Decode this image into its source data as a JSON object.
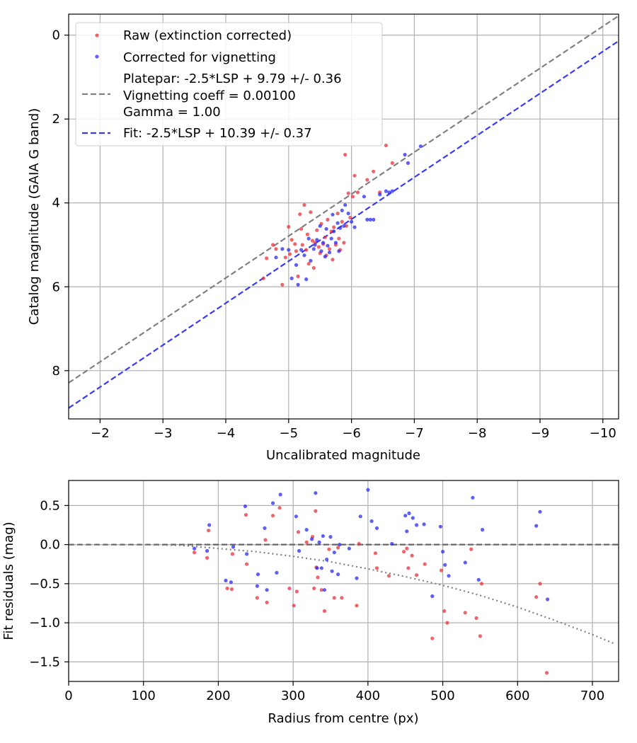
{
  "chart_data": [
    {
      "type": "scatter",
      "title": "",
      "xlabel": "Uncalibrated magnitude",
      "ylabel": "Catalog magnitude (GAIA G band)",
      "xlim": [
        -1.5,
        -10.25
      ],
      "ylim": [
        9.15,
        -0.5
      ],
      "x_inverted": true,
      "y_inverted": true,
      "grid": true,
      "legend_position": "upper-left",
      "xticks": [
        -2,
        -3,
        -4,
        -5,
        -6,
        -7,
        -8,
        -9,
        -10
      ],
      "xtick_labels": [
        "−2",
        "−3",
        "−4",
        "−5",
        "−6",
        "−7",
        "−8",
        "−9",
        "−10"
      ],
      "yticks": [
        0,
        2,
        4,
        6,
        8
      ],
      "ytick_labels": [
        "0",
        "2",
        "4",
        "6",
        "8"
      ],
      "legend": [
        {
          "label": "Raw (extinction corrected)",
          "kind": "marker",
          "color": "#e8333a"
        },
        {
          "label": "Corrected for vignetting",
          "kind": "marker",
          "color": "#2a2af0"
        },
        {
          "label": "Platepar: -2.5*LSP + 9.79 +/- 0.36",
          "kind": "dashed",
          "color": "#808080",
          "extra_lines": [
            "Vignetting coeff = 0.00100",
            "Gamma = 1.00"
          ]
        },
        {
          "label": "Fit: -2.5*LSP + 10.39 +/- 0.37",
          "kind": "dashed",
          "color": "#3a3af0"
        }
      ],
      "lines": [
        {
          "name": "Platepar",
          "color": "#808080",
          "x": [
            -1.5,
            -10.25
          ],
          "y": [
            8.29,
            -0.46
          ]
        },
        {
          "name": "Fit",
          "color": "#3a3af0",
          "x": [
            -1.5,
            -10.25
          ],
          "y": [
            8.89,
            0.14
          ]
        }
      ],
      "series": [
        {
          "name": "Raw (extinction corrected)",
          "color": "#e8333a",
          "points": [
            [
              -4.6,
              5.8
            ],
            [
              -4.65,
              5.32
            ],
            [
              -4.75,
              5.0
            ],
            [
              -4.8,
              5.1
            ],
            [
              -4.9,
              5.95
            ],
            [
              -4.95,
              5.3
            ],
            [
              -5.0,
              4.57
            ],
            [
              -5.02,
              5.22
            ],
            [
              -5.05,
              4.88
            ],
            [
              -5.1,
              4.98
            ],
            [
              -5.12,
              5.15
            ],
            [
              -5.15,
              5.75
            ],
            [
              -5.18,
              4.27
            ],
            [
              -5.2,
              4.62
            ],
            [
              -5.22,
              5.0
            ],
            [
              -5.25,
              4.05
            ],
            [
              -5.28,
              5.12
            ],
            [
              -5.3,
              4.75
            ],
            [
              -5.32,
              5.45
            ],
            [
              -5.35,
              4.22
            ],
            [
              -5.38,
              4.9
            ],
            [
              -5.4,
              5.55
            ],
            [
              -5.42,
              4.95
            ],
            [
              -5.45,
              4.65
            ],
            [
              -5.48,
              5.05
            ],
            [
              -5.5,
              5.2
            ],
            [
              -5.52,
              4.5
            ],
            [
              -5.55,
              4.98
            ],
            [
              -5.58,
              4.82
            ],
            [
              -5.6,
              5.25
            ],
            [
              -5.62,
              4.4
            ],
            [
              -5.65,
              5.1
            ],
            [
              -5.68,
              4.68
            ],
            [
              -5.7,
              5.35
            ],
            [
              -5.72,
              4.58
            ],
            [
              -5.75,
              5.0
            ],
            [
              -5.78,
              4.25
            ],
            [
              -5.8,
              4.85
            ],
            [
              -5.82,
              5.12
            ],
            [
              -5.85,
              4.45
            ],
            [
              -5.88,
              4.95
            ],
            [
              -5.9,
              2.85
            ],
            [
              -5.92,
              4.55
            ],
            [
              -5.95,
              3.77
            ],
            [
              -5.98,
              4.35
            ],
            [
              -6.02,
              3.85
            ],
            [
              -6.05,
              3.35
            ],
            [
              -6.1,
              3.75
            ],
            [
              -6.25,
              3.45
            ],
            [
              -6.35,
              3.25
            ],
            [
              -6.45,
              3.75
            ],
            [
              -6.55,
              2.63
            ],
            [
              -6.65,
              3.05
            ]
          ]
        },
        {
          "name": "Corrected for vignetting",
          "color": "#2a2af0",
          "points": [
            [
              -4.8,
              5.3
            ],
            [
              -4.9,
              5.1
            ],
            [
              -5.0,
              5.12
            ],
            [
              -5.05,
              5.8
            ],
            [
              -5.12,
              5.48
            ],
            [
              -5.15,
              5.95
            ],
            [
              -5.2,
              5.12
            ],
            [
              -5.25,
              5.25
            ],
            [
              -5.28,
              5.82
            ],
            [
              -5.32,
              4.85
            ],
            [
              -5.35,
              5.38
            ],
            [
              -5.4,
              5.1
            ],
            [
              -5.42,
              5.0
            ],
            [
              -5.45,
              4.88
            ],
            [
              -5.5,
              4.55
            ],
            [
              -5.52,
              5.15
            ],
            [
              -5.55,
              4.95
            ],
            [
              -5.58,
              5.28
            ],
            [
              -5.6,
              4.62
            ],
            [
              -5.62,
              5.02
            ],
            [
              -5.65,
              5.18
            ],
            [
              -5.68,
              4.85
            ],
            [
              -5.7,
              4.28
            ],
            [
              -5.72,
              4.68
            ],
            [
              -5.75,
              4.95
            ],
            [
              -5.78,
              4.48
            ],
            [
              -5.8,
              5.15
            ],
            [
              -5.82,
              4.6
            ],
            [
              -5.85,
              4.18
            ],
            [
              -5.88,
              4.55
            ],
            [
              -5.9,
              4.05
            ],
            [
              -5.95,
              4.25
            ],
            [
              -6.0,
              4.45
            ],
            [
              -6.05,
              4.58
            ],
            [
              -6.2,
              3.85
            ],
            [
              -6.25,
              4.4
            ],
            [
              -6.3,
              4.4
            ],
            [
              -6.35,
              4.4
            ],
            [
              -6.45,
              3.8
            ],
            [
              -6.55,
              3.72
            ],
            [
              -6.6,
              3.75
            ],
            [
              -6.65,
              3.72
            ],
            [
              -6.85,
              2.85
            ],
            [
              -6.9,
              3.05
            ],
            [
              -7.1,
              2.65
            ]
          ]
        }
      ]
    },
    {
      "type": "scatter",
      "title": "",
      "xlabel": "Radius from centre (px)",
      "ylabel": "Fit residuals (mag)",
      "xlim": [
        0,
        735
      ],
      "ylim": [
        -1.75,
        0.82
      ],
      "grid": true,
      "xticks": [
        0,
        100,
        200,
        300,
        400,
        500,
        600,
        700
      ],
      "xtick_labels": [
        "0",
        "100",
        "200",
        "300",
        "400",
        "500",
        "600",
        "700"
      ],
      "yticks": [
        0.5,
        0.0,
        -0.5,
        -1.0,
        -1.5
      ],
      "ytick_labels": [
        "0.5",
        "0.0",
        "−0.5",
        "−1.0",
        "−1.5"
      ],
      "lines": [
        {
          "name": "zero line",
          "color": "#666666",
          "style": "dashed",
          "x": [
            0,
            735
          ],
          "y": [
            0,
            0
          ]
        },
        {
          "name": "vignetting curve",
          "color": "#808080",
          "style": "dotted",
          "x": [
            0,
            50,
            100,
            150,
            200,
            250,
            300,
            350,
            400,
            450,
            500,
            550,
            600,
            650,
            700,
            730
          ],
          "y": [
            0,
            0,
            0,
            -0.01,
            -0.05,
            -0.09,
            -0.15,
            -0.22,
            -0.31,
            -0.41,
            -0.52,
            -0.65,
            -0.8,
            -0.97,
            -1.15,
            -1.27
          ]
        }
      ],
      "series": [
        {
          "name": "Raw (extinction corrected)",
          "color": "#e8333a",
          "points": [
            [
              168,
              -0.1
            ],
            [
              185,
              -0.17
            ],
            [
              187,
              0.18
            ],
            [
              212,
              -0.56
            ],
            [
              218,
              -0.57
            ],
            [
              219,
              -0.12
            ],
            [
              237,
              0.38
            ],
            [
              238,
              -0.25
            ],
            [
              252,
              -0.68
            ],
            [
              263,
              0.06
            ],
            [
              265,
              -0.74
            ],
            [
              273,
              0.37
            ],
            [
              282,
              0.47
            ],
            [
              295,
              -0.56
            ],
            [
              301,
              -0.78
            ],
            [
              305,
              -0.6
            ],
            [
              307,
              0.16
            ],
            [
              318,
              0.03
            ],
            [
              326,
              0.1
            ],
            [
              328,
              -0.56
            ],
            [
              330,
              0.43
            ],
            [
              331,
              -0.29
            ],
            [
              333,
              -0.42
            ],
            [
              338,
              -0.58
            ],
            [
              342,
              -0.85
            ],
            [
              348,
              -0.06
            ],
            [
              355,
              -0.68
            ],
            [
              360,
              -0.04
            ],
            [
              365,
              -0.68
            ],
            [
              385,
              -0.78
            ],
            [
              388,
              0.01
            ],
            [
              410,
              -0.11
            ],
            [
              412,
              -0.3
            ],
            [
              428,
              -0.4
            ],
            [
              448,
              -0.09
            ],
            [
              452,
              -0.05
            ],
            [
              454,
              -0.3
            ],
            [
              459,
              -0.14
            ],
            [
              465,
              -0.39
            ],
            [
              476,
              -0.25
            ],
            [
              486,
              -1.2
            ],
            [
              498,
              -0.33
            ],
            [
              502,
              -0.85
            ],
            [
              506,
              -1.0
            ],
            [
              530,
              -0.87
            ],
            [
              538,
              -0.06
            ],
            [
              545,
              -0.94
            ],
            [
              550,
              -1.17
            ],
            [
              552,
              -0.5
            ],
            [
              625,
              -0.67
            ],
            [
              630,
              -0.5
            ],
            [
              639,
              -1.64
            ]
          ]
        },
        {
          "name": "Corrected for vignetting",
          "color": "#2a2af0",
          "points": [
            [
              168,
              -0.05
            ],
            [
              185,
              -0.08
            ],
            [
              188,
              0.25
            ],
            [
              210,
              -0.46
            ],
            [
              217,
              -0.48
            ],
            [
              220,
              -0.03
            ],
            [
              236,
              0.49
            ],
            [
              238,
              -0.12
            ],
            [
              252,
              -0.53
            ],
            [
              253,
              -0.38
            ],
            [
              262,
              0.21
            ],
            [
              265,
              -0.58
            ],
            [
              273,
              0.53
            ],
            [
              278,
              -0.36
            ],
            [
              283,
              0.64
            ],
            [
              304,
              0.36
            ],
            [
              308,
              -0.08
            ],
            [
              318,
              0.19
            ],
            [
              325,
              0.07
            ],
            [
              330,
              0.66
            ],
            [
              332,
              -0.3
            ],
            [
              335,
              0.03
            ],
            [
              338,
              -0.3
            ],
            [
              340,
              0.11
            ],
            [
              342,
              -0.58
            ],
            [
              345,
              -0.19
            ],
            [
              350,
              0.1
            ],
            [
              352,
              -0.34
            ],
            [
              355,
              -0.1
            ],
            [
              360,
              -0.38
            ],
            [
              362,
              0.0
            ],
            [
              375,
              -0.05
            ],
            [
              385,
              -0.43
            ],
            [
              390,
              0.36
            ],
            [
              400,
              0.7
            ],
            [
              405,
              0.3
            ],
            [
              412,
              0.21
            ],
            [
              432,
              0.01
            ],
            [
              450,
              0.37
            ],
            [
              452,
              0.17
            ],
            [
              455,
              0.4
            ],
            [
              460,
              0.34
            ],
            [
              465,
              0.25
            ],
            [
              475,
              0.26
            ],
            [
              486,
              -0.66
            ],
            [
              497,
              0.23
            ],
            [
              500,
              -0.09
            ],
            [
              503,
              -0.26
            ],
            [
              508,
              -0.4
            ],
            [
              530,
              -0.23
            ],
            [
              540,
              0.6
            ],
            [
              548,
              -0.45
            ],
            [
              553,
              0.19
            ],
            [
              625,
              0.24
            ],
            [
              630,
              0.42
            ],
            [
              640,
              -0.7
            ]
          ]
        }
      ]
    }
  ]
}
